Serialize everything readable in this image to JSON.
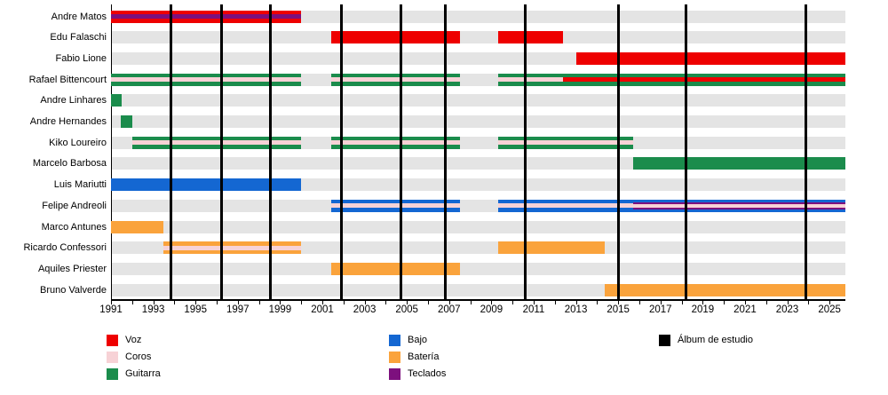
{
  "chart_data": {
    "type": "gantt",
    "title": "",
    "description": "Band lineup timeline: horizontal role bars per member with vertical studio-album markers",
    "x_axis": {
      "min_year": 1991,
      "max_year": 2025.75,
      "label_years": [
        1991,
        1993,
        1995,
        1997,
        1999,
        2001,
        2003,
        2005,
        2007,
        2009,
        2011,
        2013,
        2015,
        2017,
        2019,
        2021,
        2023,
        2025
      ],
      "minor_tick_every": 1
    },
    "colors": {
      "voz": "#ee0000",
      "coros": "#f7d2d6",
      "guitarra": "#1b8c4c",
      "bajo": "#1467d2",
      "bateria": "#faa33c",
      "teclados": "#7d107e",
      "album": "#000000",
      "track": "#e4e4e4"
    },
    "members": [
      {
        "name": "Andre Matos",
        "segments": [
          {
            "start": 1991.0,
            "end": 2000.0,
            "roles": [
              "voz",
              "teclados"
            ]
          }
        ]
      },
      {
        "name": "Edu Falaschi",
        "segments": [
          {
            "start": 2001.4,
            "end": 2007.5,
            "roles": [
              "voz"
            ]
          },
          {
            "start": 2009.3,
            "end": 2012.4,
            "roles": [
              "voz"
            ]
          }
        ]
      },
      {
        "name": "Fabio Lione",
        "segments": [
          {
            "start": 2013.0,
            "end": 2025.75,
            "roles": [
              "voz"
            ]
          }
        ]
      },
      {
        "name": "Rafael Bittencourt",
        "segments": [
          {
            "start": 1991.0,
            "end": 2000.0,
            "roles": [
              "guitarra",
              "coros"
            ]
          },
          {
            "start": 2001.4,
            "end": 2007.5,
            "roles": [
              "guitarra",
              "coros"
            ]
          },
          {
            "start": 2009.3,
            "end": 2012.4,
            "roles": [
              "guitarra",
              "coros"
            ]
          },
          {
            "start": 2012.4,
            "end": 2025.75,
            "roles": [
              "guitarra",
              "voz"
            ]
          }
        ]
      },
      {
        "name": "Andre Linhares",
        "segments": [
          {
            "start": 1991.0,
            "end": 1991.5,
            "roles": [
              "guitarra"
            ]
          }
        ]
      },
      {
        "name": "Andre Hernandes",
        "segments": [
          {
            "start": 1991.45,
            "end": 1992.0,
            "roles": [
              "guitarra"
            ]
          }
        ]
      },
      {
        "name": "Kiko Loureiro",
        "segments": [
          {
            "start": 1992.0,
            "end": 2000.0,
            "roles": [
              "guitarra",
              "coros"
            ]
          },
          {
            "start": 2001.4,
            "end": 2007.5,
            "roles": [
              "guitarra",
              "coros"
            ]
          },
          {
            "start": 2009.3,
            "end": 2015.7,
            "roles": [
              "guitarra",
              "coros"
            ]
          }
        ]
      },
      {
        "name": "Marcelo Barbosa",
        "segments": [
          {
            "start": 2015.7,
            "end": 2025.75,
            "roles": [
              "guitarra"
            ]
          }
        ]
      },
      {
        "name": "Luis Mariutti",
        "segments": [
          {
            "start": 1991.0,
            "end": 2000.0,
            "roles": [
              "bajo"
            ]
          }
        ]
      },
      {
        "name": "Felipe Andreoli",
        "segments": [
          {
            "start": 2001.4,
            "end": 2007.5,
            "roles": [
              "bajo",
              "coros"
            ]
          },
          {
            "start": 2009.3,
            "end": 2015.7,
            "roles": [
              "bajo",
              "coros"
            ]
          },
          {
            "start": 2015.7,
            "end": 2025.75,
            "roles": [
              "bajo",
              "teclados",
              "coros"
            ]
          }
        ]
      },
      {
        "name": "Marco Antunes",
        "segments": [
          {
            "start": 1991.0,
            "end": 1993.5,
            "roles": [
              "bateria"
            ]
          }
        ]
      },
      {
        "name": "Ricardo Confessori",
        "segments": [
          {
            "start": 1993.5,
            "end": 2000.0,
            "roles": [
              "bateria",
              "coros"
            ]
          },
          {
            "start": 2009.3,
            "end": 2014.35,
            "roles": [
              "bateria"
            ]
          }
        ]
      },
      {
        "name": "Aquiles Priester",
        "segments": [
          {
            "start": 2001.4,
            "end": 2007.5,
            "roles": [
              "bateria"
            ]
          }
        ]
      },
      {
        "name": "Bruno Valverde",
        "segments": [
          {
            "start": 2014.35,
            "end": 2025.75,
            "roles": [
              "bateria"
            ]
          }
        ]
      }
    ],
    "albums": {
      "years": [
        1993.85,
        1996.25,
        1998.55,
        2001.9,
        2004.7,
        2006.8,
        2010.6,
        2015.0,
        2018.2,
        2023.9
      ]
    },
    "legend": {
      "columns": [
        [
          {
            "key": "voz",
            "label": "Voz"
          },
          {
            "key": "coros",
            "label": "Coros"
          },
          {
            "key": "guitarra",
            "label": "Guitarra"
          }
        ],
        [
          {
            "key": "bajo",
            "label": "Bajo"
          },
          {
            "key": "bateria",
            "label": "Batería"
          },
          {
            "key": "teclados",
            "label": "Teclados"
          }
        ],
        [
          {
            "key": "album",
            "label": "Álbum de estudio"
          }
        ]
      ]
    }
  }
}
